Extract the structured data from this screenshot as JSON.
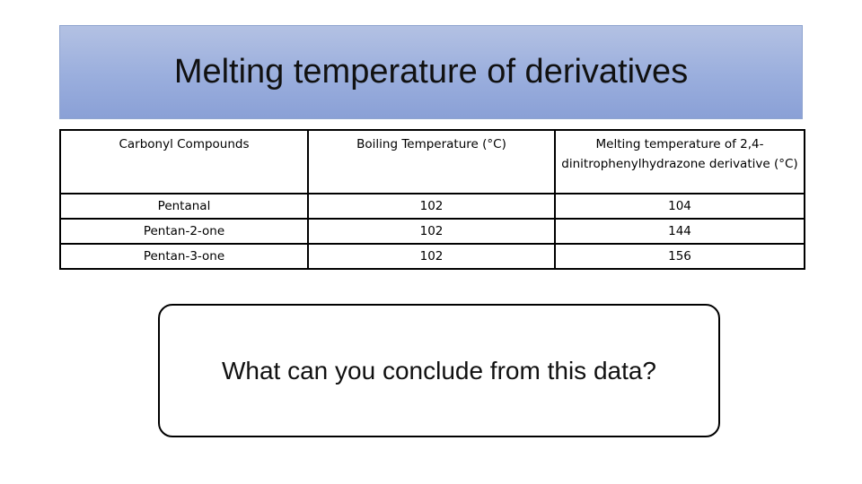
{
  "slide": {
    "title": "Melting temperature of derivatives",
    "question": "What can you conclude from this data?"
  },
  "table": {
    "headers": [
      "Carbonyl Compounds",
      "Boiling Temperature (°C)",
      "Melting temperature of 2,4-dinitrophenylhydrazone derivative (°C)"
    ],
    "rows": [
      [
        "Pentanal",
        "102",
        "104"
      ],
      [
        "Pentan-2-one",
        "102",
        "144"
      ],
      [
        "Pentan-3-one",
        "102",
        "156"
      ]
    ]
  },
  "colors": {
    "title_banner": "#9aaedd",
    "border": "#000000",
    "background": "#ffffff"
  }
}
